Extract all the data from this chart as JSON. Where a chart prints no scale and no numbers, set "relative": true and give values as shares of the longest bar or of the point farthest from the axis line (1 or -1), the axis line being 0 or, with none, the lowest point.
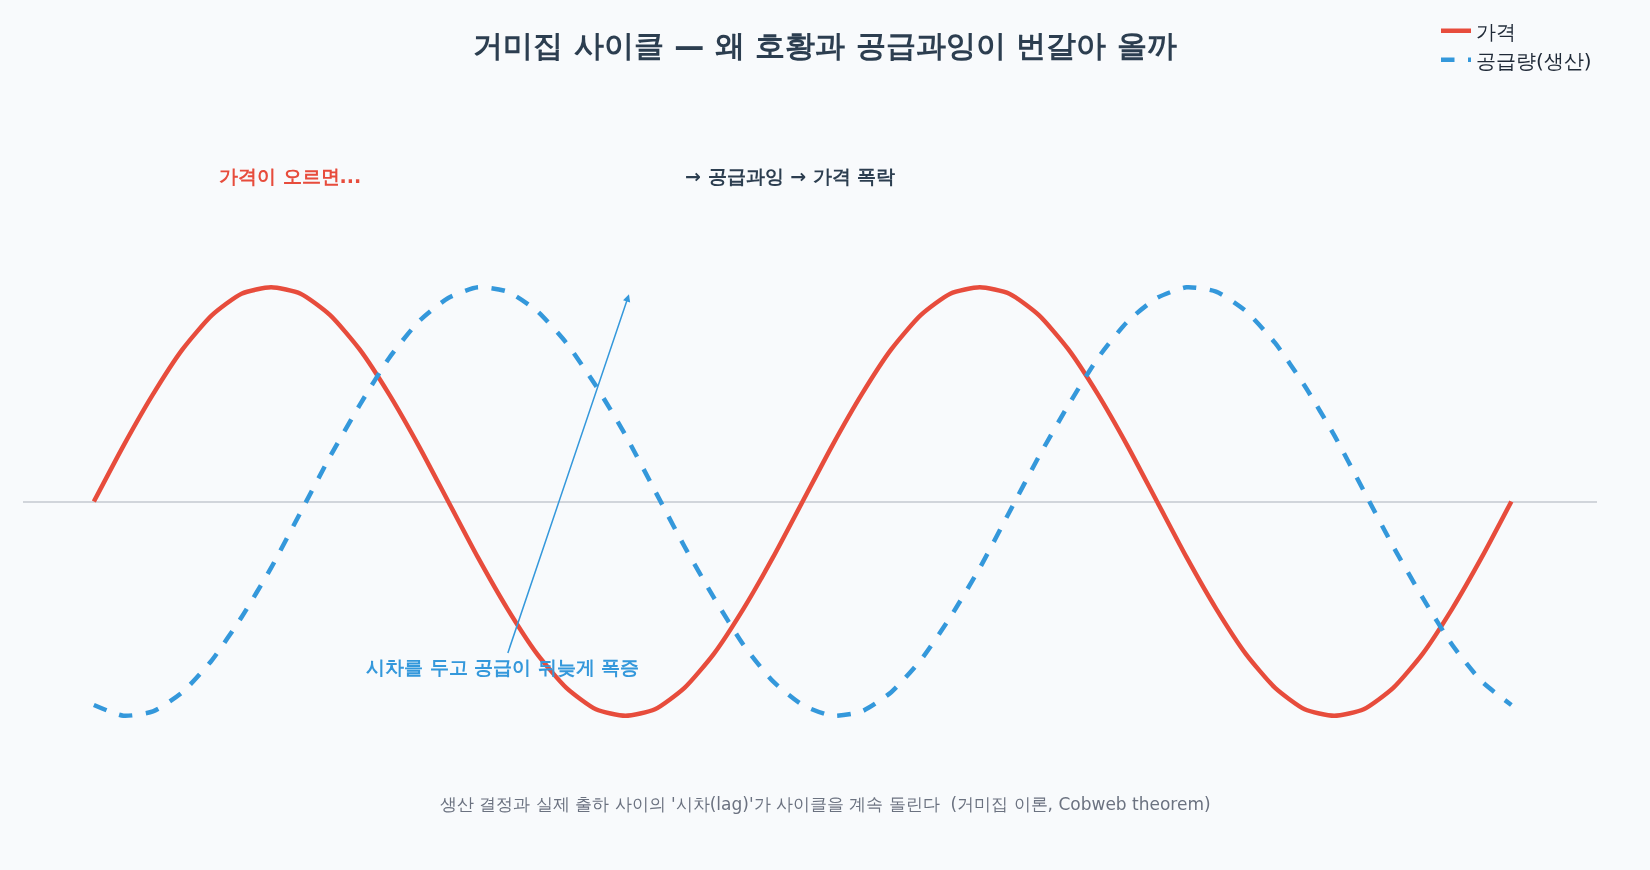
{
  "chart_data": {
    "type": "line",
    "title": "거미집 사이클 — 왜 호황과 공급과잉이 번갈아 올까",
    "relative": true,
    "legend": "top right",
    "grid": false,
    "marker": "none",
    "categories": [
      null,
      null,
      null,
      null,
      null,
      null,
      null,
      null,
      null,
      null,
      null,
      null,
      null,
      null,
      null,
      null,
      null,
      null,
      null,
      null,
      null,
      null,
      null,
      null,
      null,
      null,
      null,
      null,
      null,
      null,
      null,
      null,
      null,
      null,
      null,
      null,
      null,
      null,
      null,
      null,
      null,
      null,
      null,
      null,
      null,
      null,
      null,
      null,
      null
    ],
    "series": [
      {
        "name": "가격",
        "color": "#e74c3c",
        "line_style": "solid",
        "values": [
          0,
          0.26,
          0.5,
          0.71,
          0.87,
          0.97,
          1,
          0.97,
          0.87,
          0.71,
          0.5,
          0.26,
          0,
          -0.26,
          -0.5,
          -0.71,
          -0.87,
          -0.97,
          -1,
          -0.97,
          -0.87,
          -0.71,
          -0.5,
          -0.26,
          0,
          0.26,
          0.5,
          0.71,
          0.87,
          0.97,
          1,
          0.97,
          0.87,
          0.71,
          0.5,
          0.26,
          0,
          -0.26,
          -0.5,
          -0.71,
          -0.87,
          -0.97,
          -1,
          -0.97,
          -0.87,
          -0.71,
          -0.5,
          -0.26,
          0
        ]
      },
      {
        "name": "공급량(생산)",
        "color": "#3498db",
        "line_style": "dashed",
        "values": [
          -0.95,
          -1,
          -0.98,
          -0.89,
          -0.74,
          -0.54,
          -0.31,
          -0.05,
          0.21,
          0.45,
          0.67,
          0.84,
          0.95,
          1,
          0.98,
          0.89,
          0.74,
          0.54,
          0.31,
          0.05,
          -0.21,
          -0.45,
          -0.67,
          -0.84,
          -0.95,
          -1,
          -0.98,
          -0.89,
          -0.74,
          -0.54,
          -0.31,
          -0.05,
          0.21,
          0.45,
          0.67,
          0.84,
          0.95,
          1,
          0.98,
          0.89,
          0.74,
          0.54,
          0.31,
          0.05,
          -0.21,
          -0.45,
          -0.67,
          -0.84,
          -0.95
        ]
      }
    ],
    "annotations": [
      "가격이 오르면...",
      "→ 공급과잉 → 가격 폭락",
      "시차를 두고 공급이 뒤늦게 폭증",
      "생산 결정과 실제 출하 사이의 '시차(lag)'가 사이클을 계속 돌린다  (거미집 이론, Cobweb theorem)"
    ]
  }
}
